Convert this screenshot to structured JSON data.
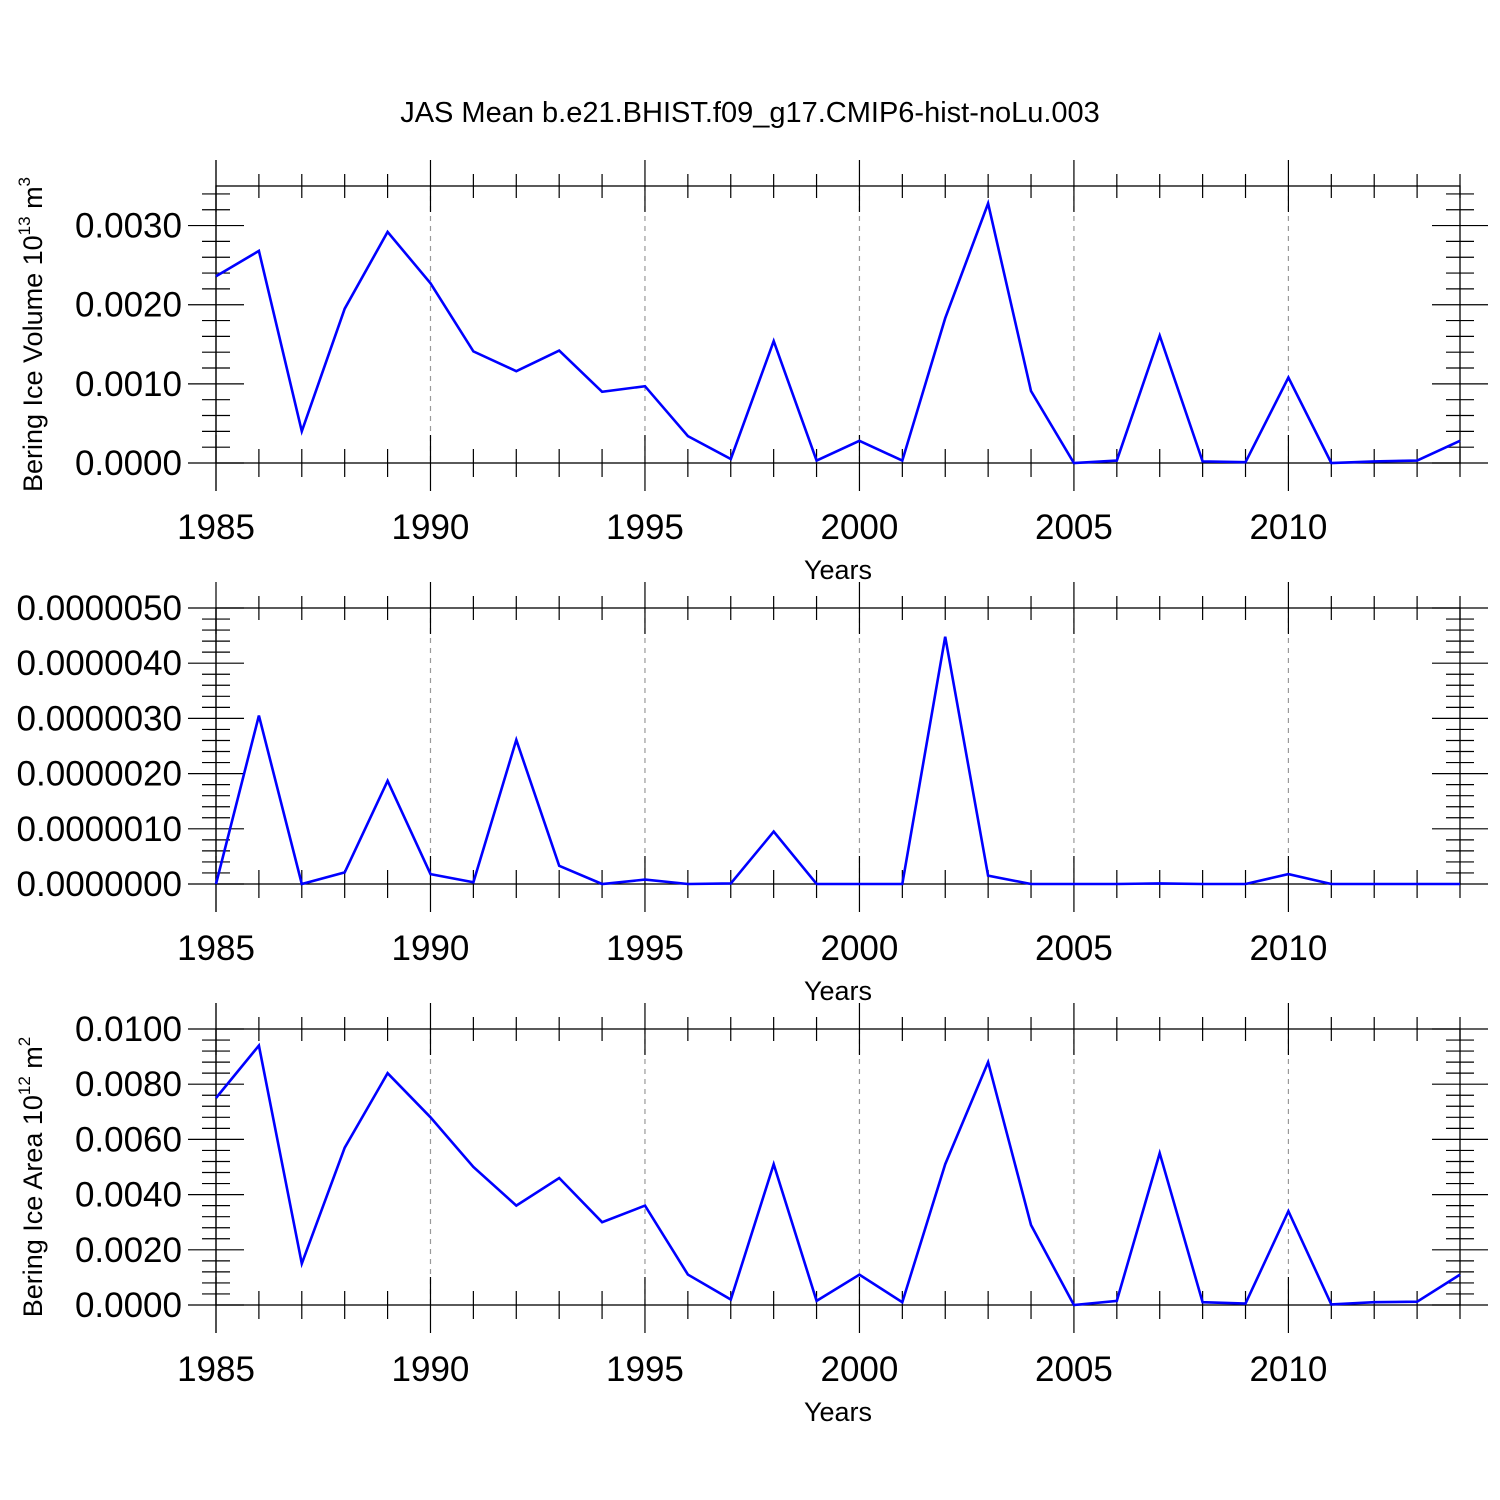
{
  "title": "JAS Mean b.e21.BHIST.f09_g17.CMIP6-hist-noLu.003",
  "colors": {
    "series": "#0000ff",
    "axis": "#000000",
    "grid": "#999999"
  },
  "chart_data": [
    {
      "type": "line",
      "xlabel": "Years",
      "ylabel": {
        "text": "Bering Ice Volume 10",
        "sup1": "13",
        "mid": " m",
        "sup2": "3"
      },
      "xlim": [
        1985,
        2014
      ],
      "ylim": [
        0,
        0.0035
      ],
      "x_ticks": [
        "1985",
        "1990",
        "1995",
        "2000",
        "2005",
        "2010"
      ],
      "y_ticks": [
        "0.0000",
        "0.0010",
        "0.0020",
        "0.0030"
      ],
      "x": [
        1985,
        1986,
        1987,
        1988,
        1989,
        1990,
        1991,
        1992,
        1993,
        1994,
        1995,
        1996,
        1997,
        1998,
        1999,
        2000,
        2001,
        2002,
        2003,
        2004,
        2005,
        2006,
        2007,
        2008,
        2009,
        2010,
        2011,
        2012,
        2013,
        2014
      ],
      "values": [
        0.00236,
        0.00268,
        0.0004,
        0.00195,
        0.00292,
        0.00227,
        0.00141,
        0.00116,
        0.00142,
        0.0009,
        0.00097,
        0.00034,
        5e-05,
        0.00154,
        3e-05,
        0.00028,
        3e-05,
        0.00183,
        0.00328,
        0.00091,
        0.0,
        3e-05,
        0.00161,
        2e-05,
        1e-05,
        0.00108,
        0.0,
        2e-05,
        3e-05,
        0.00028
      ],
      "grid": "vertical dashed at labeled years"
    },
    {
      "type": "line",
      "xlabel": "Years",
      "ylabel": null,
      "xlim": [
        1985,
        2014
      ],
      "ylim": [
        0,
        5e-06
      ],
      "x_ticks": [
        "1985",
        "1990",
        "1995",
        "2000",
        "2005",
        "2010"
      ],
      "y_ticks": [
        "0.0000000",
        "0.0000010",
        "0.0000020",
        "0.0000030",
        "0.0000040",
        "0.0000050"
      ],
      "x": [
        1985,
        1986,
        1987,
        1988,
        1989,
        1990,
        1991,
        1992,
        1993,
        1994,
        1995,
        1996,
        1997,
        1998,
        1999,
        2000,
        2001,
        2002,
        2003,
        2004,
        2005,
        2006,
        2007,
        2008,
        2009,
        2010,
        2011,
        2012,
        2013,
        2014
      ],
      "values": [
        0.0,
        3.05e-06,
        0.0,
        2.1e-07,
        1.87e-06,
        1.8e-07,
        3e-08,
        2.61e-06,
        3.3e-07,
        0.0,
        8e-08,
        0.0,
        1e-08,
        9.5e-07,
        0.0,
        0.0,
        0.0,
        4.48e-06,
        1.5e-07,
        0.0,
        0.0,
        0.0,
        1e-08,
        0.0,
        0.0,
        1.8e-07,
        0.0,
        0.0,
        0.0,
        0.0
      ],
      "grid": "vertical dashed at labeled years"
    },
    {
      "type": "line",
      "xlabel": "Years",
      "ylabel": {
        "text": "Bering Ice Area 10",
        "sup1": "12",
        "mid": " m",
        "sup2": "2"
      },
      "xlim": [
        1985,
        2014
      ],
      "ylim": [
        0,
        0.01
      ],
      "x_ticks": [
        "1985",
        "1990",
        "1995",
        "2000",
        "2005",
        "2010"
      ],
      "y_ticks": [
        "0.0000",
        "0.0020",
        "0.0040",
        "0.0060",
        "0.0080",
        "0.0100"
      ],
      "x": [
        1985,
        1986,
        1987,
        1988,
        1989,
        1990,
        1991,
        1992,
        1993,
        1994,
        1995,
        1996,
        1997,
        1998,
        1999,
        2000,
        2001,
        2002,
        2003,
        2004,
        2005,
        2006,
        2007,
        2008,
        2009,
        2010,
        2011,
        2012,
        2013,
        2014
      ],
      "values": [
        0.0075,
        0.0094,
        0.0015,
        0.0057,
        0.0084,
        0.0068,
        0.005,
        0.0036,
        0.0046,
        0.003,
        0.0036,
        0.0011,
        0.0002,
        0.0051,
        0.00015,
        0.0011,
        0.0001,
        0.0051,
        0.0088,
        0.0029,
        0.0,
        0.00015,
        0.0055,
        0.0001,
        5e-05,
        0.0034,
        2e-05,
        0.0001,
        0.00012,
        0.0011
      ],
      "grid": "vertical dashed at labeled years"
    }
  ]
}
